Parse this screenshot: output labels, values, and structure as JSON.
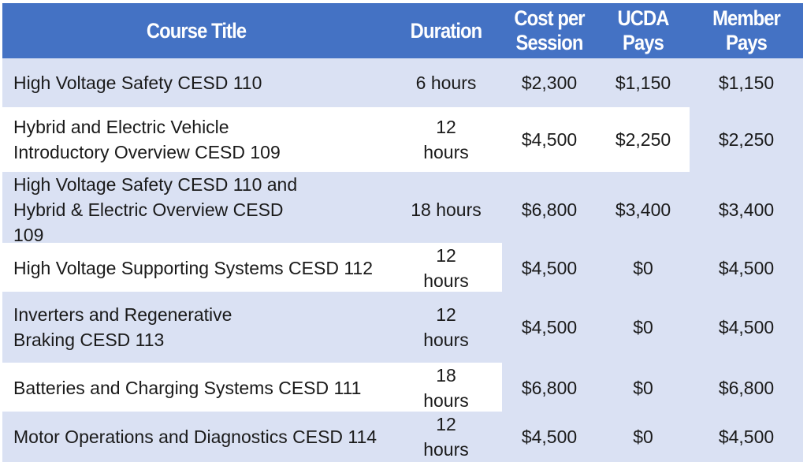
{
  "headers": {
    "title": "Course Title",
    "duration": "Duration",
    "cost": "Cost per Session",
    "ucda": "UCDA Pays",
    "member": "Member Pays"
  },
  "rows": [
    {
      "title": "High Voltage Safety CESD 110",
      "duration": "6 hours",
      "cost": "$2,300",
      "ucda": "$1,150",
      "member": "$1,150"
    },
    {
      "title": "Hybrid and Electric Vehicle Introductory Overview CESD 109",
      "duration": "12 hours",
      "cost": "$4,500",
      "ucda": "$2,250",
      "member": "$2,250"
    },
    {
      "title": "High Voltage Safety CESD 110 and Hybrid & Electric Overview CESD 109",
      "duration": "18 hours",
      "cost": "$6,800",
      "ucda": "$3,400",
      "member": "$3,400"
    },
    {
      "title": "High Voltage Supporting Systems CESD 112",
      "duration": "12 hours",
      "cost": "$4,500",
      "ucda": "$0",
      "member": "$4,500"
    },
    {
      "title": "Inverters and Regenerative Braking CESD 113",
      "duration": "12 hours",
      "cost": "$4,500",
      "ucda": "$0",
      "member": "$4,500"
    },
    {
      "title": "Batteries and Charging Systems CESD 111",
      "duration": "18 hours",
      "cost": "$6,800",
      "ucda": "$0",
      "member": "$6,800"
    },
    {
      "title": "Motor Operations and Diagnostics CESD 114",
      "duration": "12 hours",
      "cost": "$4,500",
      "ucda": "$0",
      "member": "$4,500"
    }
  ]
}
